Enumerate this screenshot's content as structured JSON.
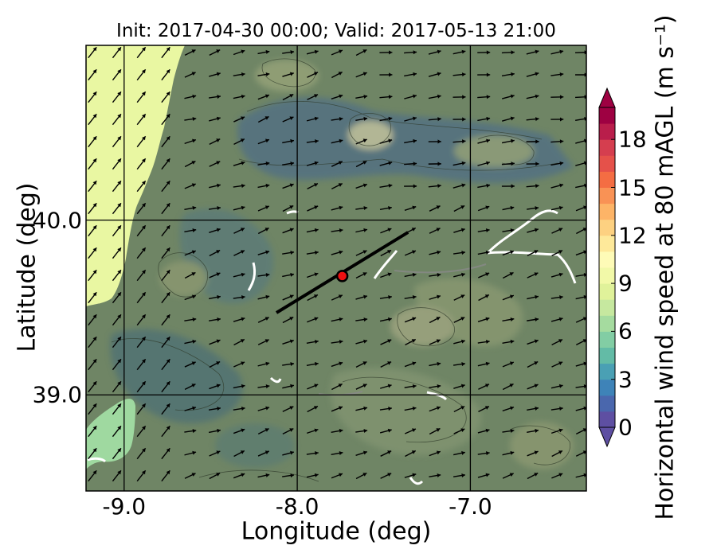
{
  "title": "Init: 2017-04-30 00:00; Valid: 2017-05-13 21:00",
  "axes": {
    "xlabel": "Longitude (deg)",
    "ylabel": "Latitude (deg)",
    "xticks": [
      {
        "value": -9.0,
        "label": "-9.0"
      },
      {
        "value": -8.0,
        "label": "-8.0"
      },
      {
        "value": -7.0,
        "label": "-7.0"
      }
    ],
    "yticks": [
      {
        "value": 40.0,
        "label": "40.0"
      },
      {
        "value": 39.0,
        "label": "39.0"
      }
    ],
    "xlim": [
      -9.22,
      -6.33
    ],
    "ylim": [
      38.45,
      41.0
    ],
    "grid": true
  },
  "colorbar": {
    "label": "Horizontal wind speed at 80 mAGL (m s⁻¹)",
    "min": 0,
    "max": 20,
    "step": 1,
    "ticks": [
      {
        "value": 0,
        "label": "0"
      },
      {
        "value": 3,
        "label": "3"
      },
      {
        "value": 6,
        "label": "6"
      },
      {
        "value": 9,
        "label": "9"
      },
      {
        "value": 12,
        "label": "12"
      },
      {
        "value": 15,
        "label": "15"
      },
      {
        "value": 18,
        "label": "18"
      }
    ],
    "extend": "both",
    "colors": [
      "#5e4fa2",
      "#4a67ad",
      "#3e83b8",
      "#4aa0b4",
      "#63bba6",
      "#82cda4",
      "#a5db9f",
      "#c6e89f",
      "#e0f29a",
      "#f2f9a8",
      "#fefbb7",
      "#fee99a",
      "#fdd181",
      "#fdb467",
      "#f99255",
      "#f46d43",
      "#e5514a",
      "#d53e4f",
      "#b91e4b",
      "#9e0142"
    ]
  },
  "map_overlays": {
    "sea_color": "#e9f7a2",
    "sea_south_color": "#9fd9a0",
    "land_color": "#6f8565",
    "marker": {
      "lon": -7.74,
      "lat": 39.68,
      "color": "#ee1111"
    },
    "transect": {
      "lon": [
        -8.12,
        -7.36
      ],
      "lat": [
        39.47,
        39.93
      ]
    }
  }
}
